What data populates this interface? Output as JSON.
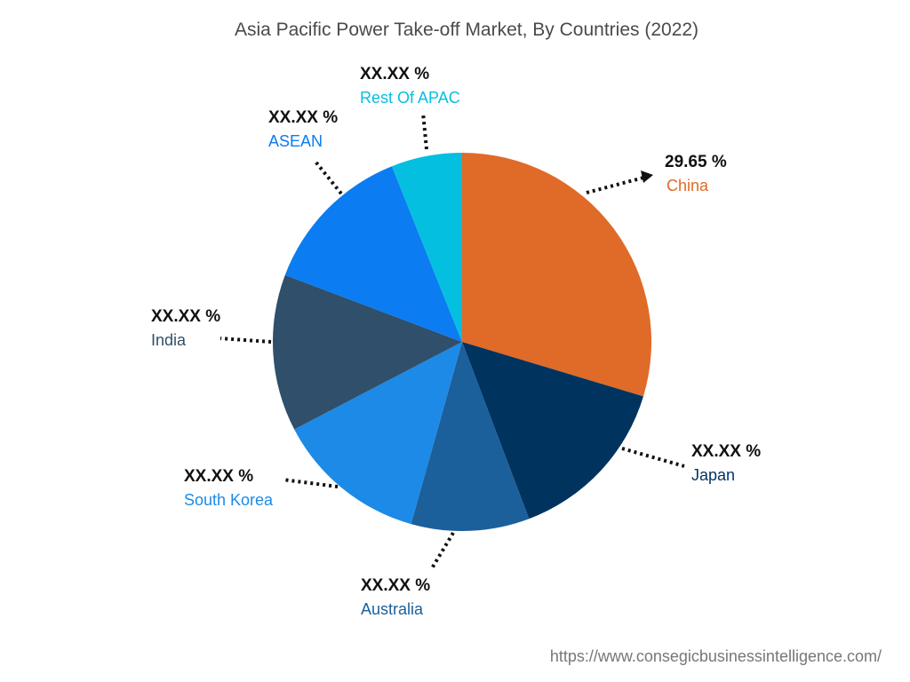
{
  "chart_data": {
    "type": "pie",
    "title": "Asia Pacific Power Take-off Market, By Countries (2022)",
    "slices": [
      {
        "name": "China",
        "value": 29.65,
        "label": "29.65 %",
        "color": "#e06a27"
      },
      {
        "name": "Japan",
        "value": 14.6,
        "label": "XX.XX %",
        "color": "#01335f"
      },
      {
        "name": "Australia",
        "value": 10.1,
        "label": "XX.XX %",
        "color": "#1b5f9b"
      },
      {
        "name": "South Korea",
        "value": 13.0,
        "label": "XX.XX %",
        "color": "#1c8ae6"
      },
      {
        "name": "India",
        "value": 13.4,
        "label": "XX.XX %",
        "color": "#2f4f6b"
      },
      {
        "name": "ASEAN",
        "value": 13.2,
        "label": "XX.XX %",
        "color": "#0b7cf1"
      },
      {
        "name": "Rest Of APAC",
        "value": 6.05,
        "label": "XX.XX %",
        "color": "#04bfe0"
      }
    ]
  },
  "footer": {
    "source_url": "https://www.consegicbusinessintelligence.com/"
  }
}
